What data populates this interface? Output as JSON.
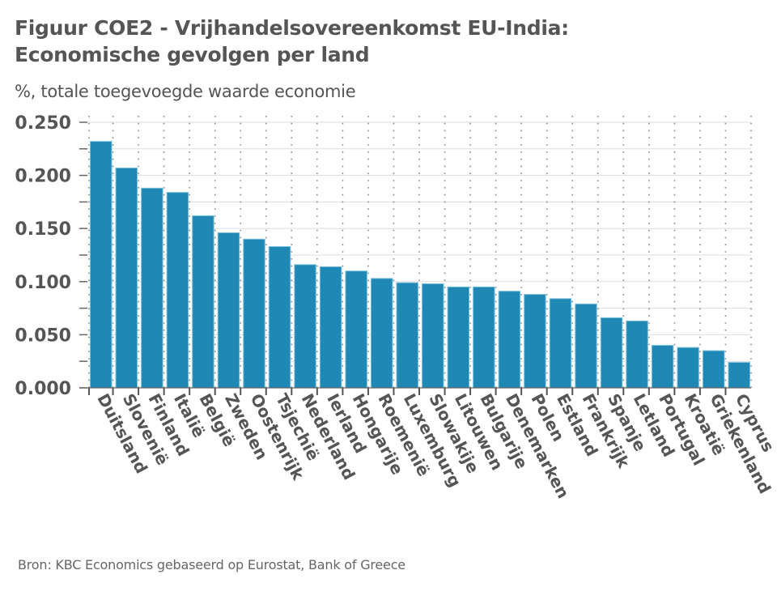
{
  "title_line1": "Figuur COE2 - Vrijhandelsovereenkomst EU-India:",
  "title_line2": "Economische gevolgen per land",
  "subtitle": "%, totale toegevoegde waarde economie",
  "source": "Bron: KBC Economics gebaseerd op Eurostat, Bank of Greece",
  "colors": {
    "bar": "#1f88b5",
    "bar_edge": "#7fc3dd",
    "text": "#555555",
    "grid": "#dddddd"
  },
  "chart_data": {
    "type": "bar",
    "title": "Figuur COE2 - Vrijhandelsovereenkomst EU-India: Economische gevolgen per land",
    "subtitle": "%, totale toegevoegde waarde economie",
    "xlabel": "",
    "ylabel": "",
    "ylim": [
      0,
      0.25
    ],
    "yticks": [
      "0.000",
      "0.050",
      "0.100",
      "0.150",
      "0.200",
      "0.250"
    ],
    "ytick_values": [
      0,
      0.05,
      0.1,
      0.15,
      0.2,
      0.25
    ],
    "grid": true,
    "legend": "none",
    "categories": [
      "Duitsland",
      "Slovenië",
      "Finland",
      "Italië",
      "België",
      "Zweden",
      "Oostenrijk",
      "Tsjechië",
      "Nederland",
      "Ierland",
      "Hongarije",
      "Roemenië",
      "Luxemburg",
      "Slowakije",
      "Litouwen",
      "Bulgarije",
      "Denemarken",
      "Polen",
      "Estland",
      "Frankrijk",
      "Spanje",
      "Letland",
      "Portugal",
      "Kroatië",
      "Griekenland",
      "Cyprus"
    ],
    "values": [
      0.232,
      0.207,
      0.188,
      0.184,
      0.162,
      0.146,
      0.14,
      0.133,
      0.116,
      0.114,
      0.11,
      0.103,
      0.099,
      0.098,
      0.095,
      0.095,
      0.091,
      0.088,
      0.084,
      0.079,
      0.066,
      0.063,
      0.04,
      0.038,
      0.035,
      0.024
    ]
  }
}
